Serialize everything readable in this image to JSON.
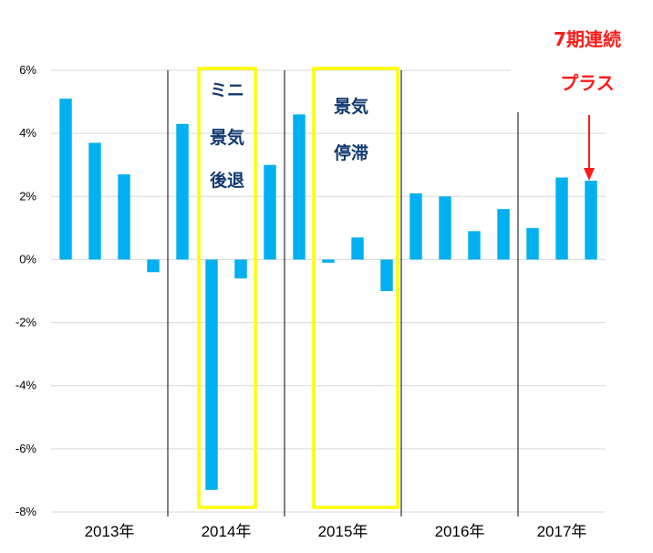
{
  "chart_data": {
    "type": "bar",
    "title": "",
    "xlabel": "",
    "ylabel": "",
    "ylim": [
      -8,
      6
    ],
    "yticks": [
      "6%",
      "4%",
      "2%",
      "0%",
      "-2%",
      "-4%",
      "-6%",
      "-8%"
    ],
    "ytick_values": [
      6,
      4,
      2,
      0,
      -2,
      -4,
      -6,
      -8
    ],
    "year_groups": [
      "2013年",
      "2014年",
      "2015年",
      "2016年",
      "2017年"
    ],
    "values": [
      5.1,
      3.7,
      2.7,
      -0.4,
      4.3,
      -7.3,
      -0.6,
      3.0,
      4.6,
      -0.1,
      0.7,
      -1.0,
      2.1,
      2.0,
      0.9,
      1.6,
      1.0,
      2.6,
      2.5
    ],
    "bar_color": "#00b0f0",
    "grid": "horizontal",
    "legend": "none"
  },
  "annotations": {
    "box1_lines": [
      "ミニ",
      "景気",
      "後退"
    ],
    "box2_lines": [
      "景気",
      "停滞"
    ],
    "box_color": "#ffff00",
    "note_color": "#10386f",
    "callout_lines": [
      "7期連続",
      "プラス"
    ],
    "callout_color": "#ff1a1a"
  }
}
